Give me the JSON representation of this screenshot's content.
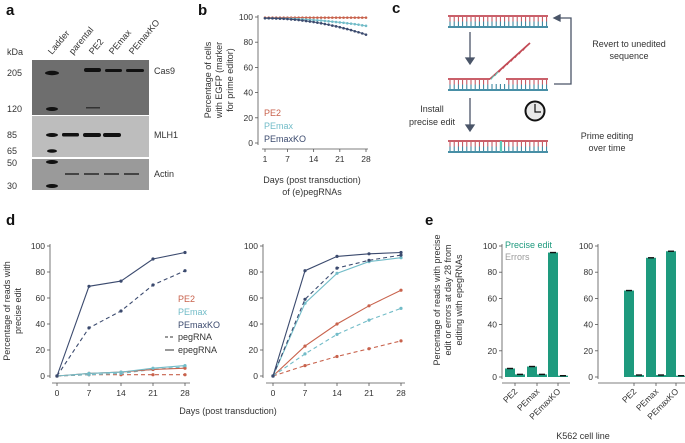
{
  "panel_labels": {
    "a": "a",
    "b": "b",
    "c": "c",
    "d": "d",
    "e": "e"
  },
  "colors": {
    "PE2": "#c8624c",
    "PEmax": "#72bcc8",
    "PEmaxKO": "#3b4a6e",
    "precise": "#1e9a7e",
    "errors": "#9a9a9a",
    "dna_top": "#c24a55",
    "dna_bottom": "#2e7f9a",
    "edit": "#5cc8b8"
  },
  "blot": {
    "unit": "kDa",
    "lanes": [
      "Ladder",
      "parental",
      "PE2",
      "PEmax",
      "PEmaxKO"
    ],
    "ladder": [
      "205",
      "120",
      "85",
      "65",
      "50",
      "30"
    ],
    "proteins": [
      "Cas9",
      "MLH1",
      "Actin"
    ]
  },
  "diagram": {
    "revert": [
      "Revert to unedited",
      "sequence"
    ],
    "install": [
      "Install",
      "precise edit"
    ],
    "clock": [
      "Prime editing",
      "over time"
    ],
    "clock_icon": "clock-icon"
  },
  "chart_data": [
    {
      "id": "b",
      "type": "line",
      "x": [
        1,
        2,
        3,
        4,
        5,
        6,
        7,
        8,
        9,
        10,
        11,
        12,
        13,
        14,
        15,
        16,
        17,
        18,
        19,
        20,
        21,
        22,
        23,
        24,
        25,
        26,
        27,
        28
      ],
      "xticks": [
        1,
        7,
        14,
        21,
        28
      ],
      "yticks": [
        0,
        20,
        40,
        60,
        80,
        100
      ],
      "ylim": [
        0,
        100
      ],
      "ylabel": [
        "Percentage of cells",
        "with EGFP (marker",
        "for prime editor)"
      ],
      "xlabel": [
        "Days (post transduction)",
        "of (e)pegRNAs"
      ],
      "legend": "bottom-left",
      "series": [
        {
          "name": "PE2",
          "values": [
            99.5,
            99.5,
            99.5,
            99.5,
            99.5,
            99.5,
            99.5,
            99.5,
            99.5,
            99.5,
            99.5,
            99.5,
            99.5,
            99.5,
            99.5,
            99.5,
            99.5,
            99.5,
            99.5,
            99.5,
            99.5,
            99.5,
            99.5,
            99.5,
            99.5,
            99.5,
            99.5,
            99.5
          ]
        },
        {
          "name": "PEmax",
          "values": [
            99,
            99,
            99,
            98.9,
            98.9,
            98.8,
            98.7,
            98.6,
            98.5,
            98.3,
            98.2,
            98,
            97.8,
            97.6,
            97.4,
            97.2,
            96.9,
            96.6,
            96.3,
            96,
            95.7,
            95.4,
            95,
            94.7,
            94.3,
            93.9,
            93.4,
            93
          ]
        },
        {
          "name": "PEmaxKO",
          "values": [
            99,
            99,
            98.9,
            98.8,
            98.7,
            98.6,
            98.4,
            98.1,
            97.9,
            97.6,
            97.2,
            96.8,
            96.4,
            96,
            95.5,
            95,
            94.4,
            93.9,
            93.2,
            92.6,
            91.9,
            91.1,
            90.4,
            89.6,
            88.7,
            87.9,
            87,
            86
          ]
        }
      ]
    },
    {
      "id": "d-left",
      "type": "line",
      "x": [
        0,
        7,
        14,
        21,
        28
      ],
      "xticks": [
        0,
        7,
        14,
        21,
        28
      ],
      "yticks": [
        0,
        20,
        40,
        60,
        80,
        100
      ],
      "ylim": [
        0,
        100
      ],
      "ylabel": [
        "Percentage of reads with",
        "precise edit"
      ],
      "xlabel": "Days (post transduction)",
      "legend_editors": [
        "PE2",
        "PEmax",
        "PEmaxKO"
      ],
      "legend_guides": [
        "pegRNA",
        "epegRNA"
      ],
      "series": [
        {
          "editor": "PE2",
          "guide": "pegRNA",
          "values": [
            0,
            1,
            1,
            1,
            1
          ]
        },
        {
          "editor": "PEmax",
          "guide": "pegRNA",
          "values": [
            0,
            1,
            2,
            5,
            7
          ]
        },
        {
          "editor": "PE2",
          "guide": "epegRNA",
          "values": [
            0,
            2,
            3,
            5,
            6
          ]
        },
        {
          "editor": "PEmax",
          "guide": "epegRNA",
          "values": [
            0,
            2,
            3,
            6,
            8
          ]
        },
        {
          "editor": "PEmaxKO",
          "guide": "pegRNA",
          "values": [
            0,
            37,
            50,
            70,
            81
          ]
        },
        {
          "editor": "PEmaxKO",
          "guide": "epegRNA",
          "values": [
            0,
            69,
            73,
            90,
            95
          ]
        }
      ]
    },
    {
      "id": "d-right",
      "type": "line",
      "x": [
        0,
        7,
        14,
        21,
        28
      ],
      "xticks": [
        0,
        7,
        14,
        21,
        28
      ],
      "yticks": [
        0,
        20,
        40,
        60,
        80,
        100
      ],
      "ylim": [
        0,
        100
      ],
      "series": [
        {
          "editor": "PE2",
          "guide": "pegRNA",
          "values": [
            0,
            8,
            15,
            21,
            27
          ]
        },
        {
          "editor": "PE2",
          "guide": "epegRNA",
          "values": [
            0,
            23,
            40,
            54,
            66
          ]
        },
        {
          "editor": "PEmax",
          "guide": "pegRNA",
          "values": [
            0,
            17,
            32,
            43,
            52
          ]
        },
        {
          "editor": "PEmax",
          "guide": "epegRNA",
          "values": [
            0,
            56,
            79,
            88,
            91
          ]
        },
        {
          "editor": "PEmaxKO",
          "guide": "pegRNA",
          "values": [
            0,
            59,
            83,
            89,
            93
          ]
        },
        {
          "editor": "PEmaxKO",
          "guide": "epegRNA",
          "values": [
            0,
            81,
            92,
            94,
            95
          ]
        }
      ]
    },
    {
      "id": "e-left",
      "type": "bar",
      "categories": [
        "PE2",
        "PEmax",
        "PEmaxKO"
      ],
      "yticks": [
        0,
        20,
        40,
        60,
        80,
        100
      ],
      "ylim": [
        0,
        100
      ],
      "ylabel": [
        "Percentage of reads with precise",
        "edit or errors at day 28 from",
        "editing with epegRNAs"
      ],
      "xlabel": "K562 cell line",
      "legend": "top-left",
      "series": [
        {
          "name": "Precise edit",
          "values": [
            6.5,
            8,
            95
          ]
        },
        {
          "name": "Errors",
          "values": [
            2,
            2,
            1
          ]
        }
      ]
    },
    {
      "id": "e-right",
      "type": "bar",
      "categories": [
        "PE2",
        "PEmax",
        "PEmaxKO"
      ],
      "yticks": [
        0,
        20,
        40,
        60,
        80,
        100
      ],
      "ylim": [
        0,
        100
      ],
      "series": [
        {
          "name": "Precise edit",
          "values": [
            66,
            91,
            96
          ]
        },
        {
          "name": "Errors",
          "values": [
            1.5,
            1.5,
            1
          ]
        }
      ]
    }
  ]
}
